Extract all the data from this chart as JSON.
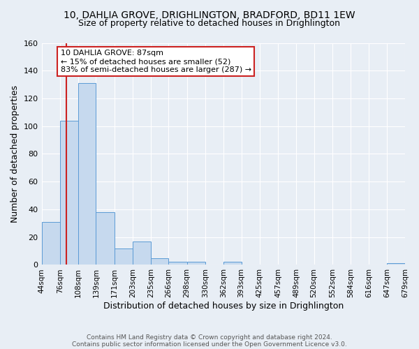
{
  "title_line1": "10, DAHLIA GROVE, DRIGHLINGTON, BRADFORD, BD11 1EW",
  "title_line2": "Size of property relative to detached houses in Drighlington",
  "xlabel": "Distribution of detached houses by size in Drighlington",
  "ylabel": "Number of detached properties",
  "bin_edges": [
    44,
    76,
    108,
    139,
    171,
    203,
    235,
    266,
    298,
    330,
    362,
    393,
    425,
    457,
    489,
    520,
    552,
    584,
    616,
    647,
    679
  ],
  "bar_heights": [
    31,
    104,
    131,
    38,
    12,
    17,
    5,
    2,
    2,
    0,
    2,
    0,
    0,
    0,
    0,
    0,
    0,
    0,
    0,
    1
  ],
  "bar_color": "#c6d9ee",
  "bar_edge_color": "#5b9bd5",
  "property_sqm": 87,
  "vline_color": "#cc2222",
  "annotation_line1": "10 DAHLIA GROVE: 87sqm",
  "annotation_line2": "← 15% of detached houses are smaller (52)",
  "annotation_line3": "83% of semi-detached houses are larger (287) →",
  "annotation_box_color": "#ffffff",
  "annotation_box_edge": "#cc2222",
  "ylim": [
    0,
    160
  ],
  "yticks": [
    0,
    20,
    40,
    60,
    80,
    100,
    120,
    140,
    160
  ],
  "background_color": "#e8eef5",
  "grid_color": "#ffffff",
  "footer_line1": "Contains HM Land Registry data © Crown copyright and database right 2024.",
  "footer_line2": "Contains public sector information licensed under the Open Government Licence v3.0."
}
